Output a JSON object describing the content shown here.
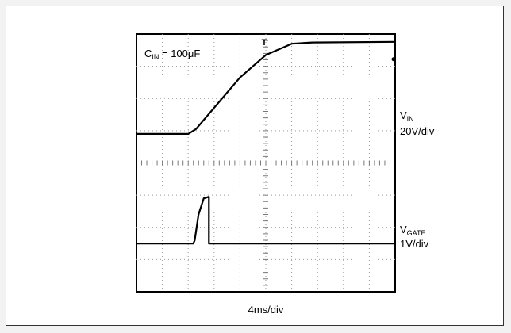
{
  "chart_data": {
    "type": "line",
    "title": "",
    "annotation": {
      "main": "C",
      "sub": "IN",
      "rest": " = 100μF"
    },
    "xlabel": "4ms/div",
    "x_divisions": 10,
    "y_divisions": 8,
    "grid": true,
    "series": [
      {
        "name_main": "V",
        "name_sub": "IN",
        "scale": "20V/div",
        "x": [
          0,
          2.0,
          2.3,
          4.0,
          5.0,
          6.0,
          6.8,
          10
        ],
        "y_div": [
          4.9,
          4.9,
          5.05,
          6.65,
          7.35,
          7.7,
          7.74,
          7.76
        ]
      },
      {
        "name_main": "V",
        "name_sub": "GATE",
        "scale": "1V/div",
        "x": [
          0,
          2.2,
          2.25,
          2.4,
          2.6,
          2.8,
          2.8,
          10
        ],
        "y_div": [
          1.5,
          1.5,
          1.6,
          2.4,
          2.9,
          2.95,
          1.5,
          1.5
        ]
      }
    ],
    "trigger_marker": "T"
  }
}
